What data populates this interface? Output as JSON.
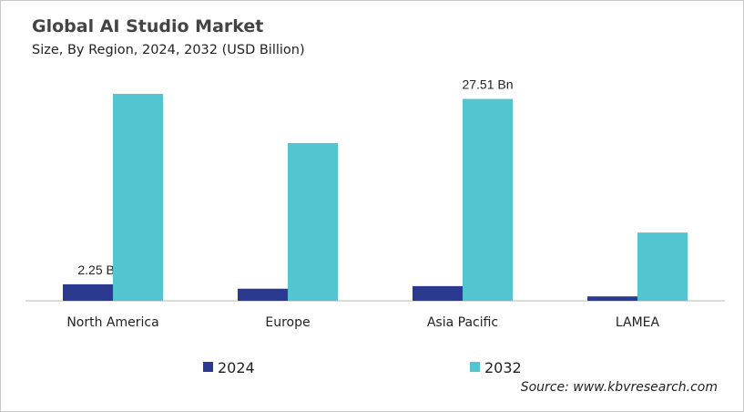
{
  "chart_data": {
    "type": "bar",
    "title": "Global AI Studio Market",
    "subtitle": "Size, By Region, 2024, 2032 (USD Billion)",
    "categories": [
      "North America",
      "Europe",
      "Asia Pacific",
      "LAMEA"
    ],
    "series": [
      {
        "name": "2024",
        "color": "#2b3990",
        "values": [
          2.25,
          1.65,
          2.0,
          0.6
        ]
      },
      {
        "name": "2032",
        "color": "#52c5d0",
        "values": [
          28.2,
          21.5,
          27.51,
          9.3
        ]
      }
    ],
    "data_labels": [
      {
        "series": "2024",
        "category": "North America",
        "text": "2.25 Bn"
      },
      {
        "series": "2032",
        "category": "Asia Pacific",
        "text": "27.51 Bn"
      }
    ],
    "ylim": [
      0,
      28.5
    ],
    "grid": false,
    "legend": "bottom",
    "source": "Source: www.kbvresearch.com"
  }
}
